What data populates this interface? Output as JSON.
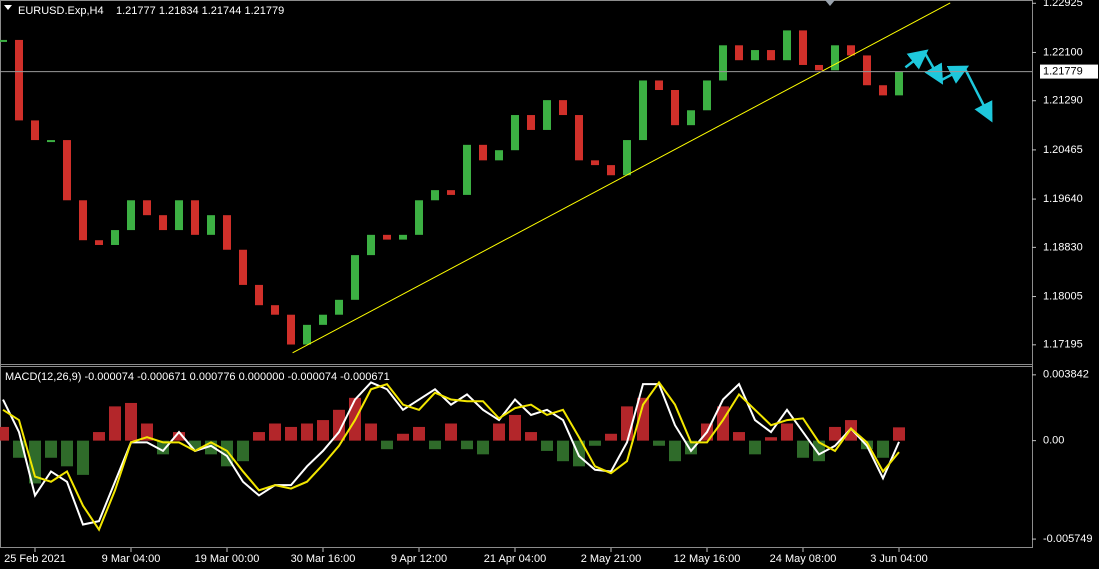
{
  "chart_data": [
    {
      "type": "candlestick",
      "title": "EURUSD.Exp,H4",
      "quote": "1.21777 1.21834 1.21744 1.21779",
      "values": [
        1.2231,
        1.2096,
        1.2063,
        1.2063,
        1.1962,
        1.1895,
        1.1887,
        1.1912,
        1.1962,
        1.1937,
        1.1912,
        1.1962,
        1.1904,
        1.1937,
        1.1879,
        1.182,
        1.1786,
        1.177,
        1.172,
        1.1753,
        1.177,
        1.1795,
        1.187,
        1.1904,
        1.1896,
        1.1904,
        1.1962,
        1.1979,
        1.1971,
        1.2055,
        1.2029,
        1.2046,
        1.2105,
        1.208,
        1.213,
        1.2105,
        1.2029,
        1.2021,
        1.2004,
        1.2063,
        1.2163,
        1.2147,
        1.2088,
        1.2113,
        1.2163,
        1.2222,
        1.2197,
        1.2214,
        1.2197,
        1.2247,
        1.2189,
        1.218,
        1.2222,
        1.2205,
        1.2155,
        1.2138,
        1.2178
      ],
      "up_color": "#3cb043",
      "down_color": "#d0302a",
      "ylim": [
        1.1689,
        1.2298
      ],
      "yticks": [
        1.22925,
        {
          "value": 1.221,
          "label": "1.22100"
        },
        {
          "value": 1.2129,
          "label": "1.21290"
        },
        1.20465,
        {
          "value": 1.1964,
          "label": "1.19640"
        },
        {
          "value": 1.1883,
          "label": "1.18830"
        },
        1.18005,
        1.17195
      ],
      "last_price": 1.21779,
      "last_price_color": "#9a9a9a",
      "trendline": {
        "x": [
          18.1,
          59.2
        ],
        "y": [
          1.1706,
          1.2293
        ],
        "color": "#ffff00"
      },
      "forecast": {
        "x": [
          56.4,
          57.6,
          58.6,
          60.1,
          61.7
        ],
        "y": [
          1.2185,
          1.221,
          1.2163,
          1.2184,
          1.21
        ],
        "color": "#1ec8dc"
      }
    },
    {
      "type": "macd",
      "title": "MACD(12,26,9) -0.000074 -0.000671 0.000776 0.000000 -0.000074 -0.000671",
      "categories": [
        null,
        null,
        "25 Feb 2021",
        null,
        null,
        null,
        null,
        null,
        "9 Mar 04:00",
        null,
        null,
        null,
        null,
        null,
        "19 Mar 00:00",
        null,
        null,
        null,
        null,
        null,
        "30 Mar 16:00",
        null,
        null,
        null,
        null,
        null,
        "9 Apr 12:00",
        null,
        null,
        null,
        null,
        null,
        "21 Apr 04:00",
        null,
        null,
        null,
        null,
        null,
        "2 May 21:00",
        null,
        null,
        null,
        null,
        null,
        "12 May 16:00",
        null,
        null,
        null,
        null,
        null,
        "24 May 08:00",
        null,
        null,
        null,
        null,
        null,
        "3 Jun 04:00"
      ],
      "histogram": {
        "values": [
          0.0008,
          -0.001,
          -0.0025,
          -0.001,
          -0.0015,
          -0.002,
          0.0005,
          0.002,
          0.0022,
          0.001,
          -0.0008,
          0.0005,
          -0.0005,
          -0.0008,
          -0.0015,
          -0.0012,
          0.0005,
          0.001,
          0.0008,
          0.001,
          0.0012,
          0.0018,
          0.0025,
          0.001,
          -0.0005,
          0.0004,
          0.0008,
          -0.0005,
          0.001,
          -0.0005,
          -0.0008,
          0.001,
          0.0015,
          0.0005,
          -0.0006,
          -0.0012,
          -0.0015,
          -0.0003,
          0.0004,
          0.002,
          0.0025,
          -0.0003,
          -0.0012,
          -0.0008,
          0.001,
          0.002,
          0.0005,
          -0.0008,
          0.0002,
          0.001,
          -0.001,
          -0.0012,
          0.0008,
          0.0012,
          -0.0005,
          -0.001,
          0.000776
        ],
        "up_color": "#b3262a",
        "down_color": "#2f6b2a"
      },
      "series": [
        {
          "color": "#ffffff",
          "values": [
            0.0024,
            0.0005,
            -0.0032,
            -0.0018,
            -0.0024,
            -0.0049,
            -0.0047,
            -0.0024,
            -0.0001,
            -0.0001,
            -0.0006,
            0.0005,
            -0.0006,
            -0.0003,
            -0.0009,
            -0.0024,
            -0.0032,
            -0.0026,
            -0.0026,
            -0.0015,
            -0.0006,
            0.0005,
            0.0024,
            0.0034,
            0.003,
            0.0018,
            0.0024,
            0.003,
            0.0021,
            0.0027,
            0.0018,
            0.0012,
            0.0024,
            0.0015,
            0.0018,
            0.0012,
            -0.0009,
            -0.0017,
            -0.0018,
            -0.0001,
            0.0033,
            0.0033,
            0.0009,
            -0.0006,
            0.0005,
            0.0024,
            0.0033,
            0.0012,
            0.0005,
            0.0018,
            0.0005,
            -0.0008,
            -0.0003,
            0.0007,
            -0.0003,
            -0.0022,
            -7.4e-05
          ]
        },
        {
          "color": "#f2e600",
          "values": [
            0.0018,
            0.0012,
            -0.0021,
            -0.0024,
            -0.0018,
            -0.0038,
            -0.0052,
            -0.0029,
            -0.0001,
            0.0002,
            -0.0001,
            -0.0001,
            -0.0006,
            -0.0001,
            -0.0006,
            -0.0018,
            -0.0029,
            -0.0026,
            -0.0028,
            -0.0024,
            -0.0014,
            -0.0003,
            0.0012,
            0.003,
            0.0033,
            0.0021,
            0.0018,
            0.0028,
            0.0024,
            0.0023,
            0.0023,
            0.0013,
            0.0019,
            0.0021,
            0.0015,
            0.0018,
            0.0002,
            -0.0015,
            -0.0019,
            -0.0012,
            0.0021,
            0.0034,
            0.0021,
            -0.0001,
            -0.0001,
            0.0012,
            0.0027,
            0.0018,
            0.0009,
            0.0012,
            0.0013,
            -0.0001,
            -0.0006,
            0.0007,
            -0.0001,
            -0.0018,
            -0.000671
          ]
        }
      ],
      "ylim": [
        -0.00627,
        0.0043
      ],
      "yticks": [
        0.003842,
        {
          "value": 0,
          "label": "0.00"
        },
        -0.005749
      ]
    }
  ]
}
